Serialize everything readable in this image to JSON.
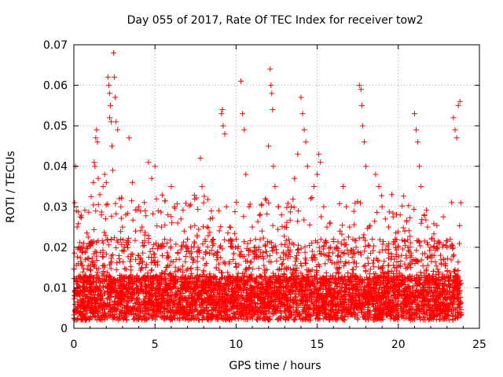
{
  "chart_data": {
    "type": "scatter",
    "title": "Day 055 of 2017, Rate Of TEC Index for receiver tow2",
    "xlabel": "GPS time / hours",
    "ylabel": "ROTI / TECUs",
    "xlim": [
      0,
      25
    ],
    "ylim": [
      0,
      0.07
    ],
    "xticks": [
      0,
      5,
      10,
      15,
      20,
      25
    ],
    "xtick_labels": [
      "0",
      "5",
      "10",
      "15",
      "20",
      "25"
    ],
    "yticks": [
      0,
      0.01,
      0.02,
      0.03,
      0.04,
      0.05,
      0.06,
      0.07
    ],
    "ytick_labels": [
      "0",
      "0.01",
      "0.02",
      "0.03",
      "0.04",
      "0.05",
      "0.06",
      "0.07"
    ],
    "grid": true,
    "marker": "+",
    "color": "#ff0000",
    "series": [
      {
        "name": "ROTI",
        "points": [
          [
            0.05,
            0.031
          ],
          [
            0.1,
            0.04
          ],
          [
            0.15,
            0.029
          ],
          [
            0.2,
            0.025
          ],
          [
            0.3,
            0.02
          ],
          [
            0.5,
            0.019
          ],
          [
            0.7,
            0.017
          ],
          [
            1.0,
            0.021
          ],
          [
            1.2,
            0.036
          ],
          [
            1.25,
            0.041
          ],
          [
            1.3,
            0.04
          ],
          [
            1.35,
            0.047
          ],
          [
            1.4,
            0.049
          ],
          [
            1.45,
            0.046
          ],
          [
            1.5,
            0.037
          ],
          [
            1.6,
            0.033
          ],
          [
            1.7,
            0.028
          ],
          [
            1.8,
            0.035
          ],
          [
            1.9,
            0.038
          ],
          [
            2.0,
            0.036
          ],
          [
            2.1,
            0.062
          ],
          [
            2.15,
            0.06
          ],
          [
            2.2,
            0.058
          ],
          [
            2.25,
            0.055
          ],
          [
            2.2,
            0.052
          ],
          [
            2.3,
            0.051
          ],
          [
            2.35,
            0.045
          ],
          [
            2.4,
            0.039
          ],
          [
            2.45,
            0.068
          ],
          [
            2.5,
            0.062
          ],
          [
            2.55,
            0.057
          ],
          [
            2.6,
            0.051
          ],
          [
            2.7,
            0.049
          ],
          [
            2.8,
            0.032
          ],
          [
            2.9,
            0.03
          ],
          [
            3.0,
            0.025
          ],
          [
            3.2,
            0.028
          ],
          [
            3.4,
            0.047
          ],
          [
            3.6,
            0.036
          ],
          [
            3.8,
            0.024
          ],
          [
            4.0,
            0.03
          ],
          [
            4.2,
            0.025
          ],
          [
            4.4,
            0.029
          ],
          [
            4.6,
            0.041
          ],
          [
            4.8,
            0.037
          ],
          [
            5.0,
            0.04
          ],
          [
            5.2,
            0.029
          ],
          [
            5.4,
            0.025
          ],
          [
            5.6,
            0.022
          ],
          [
            5.8,
            0.028
          ],
          [
            6.0,
            0.035
          ],
          [
            6.2,
            0.03
          ],
          [
            6.4,
            0.026
          ],
          [
            6.6,
            0.027
          ],
          [
            6.8,
            0.024
          ],
          [
            7.0,
            0.022
          ],
          [
            7.2,
            0.025
          ],
          [
            7.4,
            0.02
          ],
          [
            7.6,
            0.023
          ],
          [
            7.8,
            0.042
          ],
          [
            7.9,
            0.035
          ],
          [
            8.0,
            0.031
          ],
          [
            8.2,
            0.025
          ],
          [
            8.4,
            0.027
          ],
          [
            8.6,
            0.022
          ],
          [
            8.8,
            0.018
          ],
          [
            9.0,
            0.02
          ],
          [
            9.1,
            0.053
          ],
          [
            9.15,
            0.054
          ],
          [
            9.2,
            0.05
          ],
          [
            9.3,
            0.048
          ],
          [
            9.4,
            0.03
          ],
          [
            9.6,
            0.025
          ],
          [
            9.8,
            0.02
          ],
          [
            10.0,
            0.022
          ],
          [
            10.3,
            0.061
          ],
          [
            10.4,
            0.053
          ],
          [
            10.5,
            0.049
          ],
          [
            10.6,
            0.038
          ],
          [
            10.8,
            0.03
          ],
          [
            11.0,
            0.025
          ],
          [
            11.2,
            0.022
          ],
          [
            11.4,
            0.02
          ],
          [
            11.6,
            0.024
          ],
          [
            11.8,
            0.032
          ],
          [
            12.0,
            0.045
          ],
          [
            12.1,
            0.064
          ],
          [
            12.15,
            0.06
          ],
          [
            12.2,
            0.058
          ],
          [
            12.25,
            0.054
          ],
          [
            12.3,
            0.04
          ],
          [
            12.4,
            0.035
          ],
          [
            12.6,
            0.03
          ],
          [
            12.8,
            0.028
          ],
          [
            13.0,
            0.025
          ],
          [
            13.2,
            0.02
          ],
          [
            13.4,
            0.03
          ],
          [
            13.6,
            0.037
          ],
          [
            13.8,
            0.043
          ],
          [
            14.0,
            0.057
          ],
          [
            14.1,
            0.053
          ],
          [
            14.2,
            0.049
          ],
          [
            14.3,
            0.046
          ],
          [
            14.4,
            0.04
          ],
          [
            14.6,
            0.032
          ],
          [
            14.8,
            0.035
          ],
          [
            15.0,
            0.038
          ],
          [
            15.1,
            0.043
          ],
          [
            15.2,
            0.041
          ],
          [
            15.4,
            0.03
          ],
          [
            15.6,
            0.025
          ],
          [
            15.8,
            0.026
          ],
          [
            16.0,
            0.022
          ],
          [
            16.2,
            0.02
          ],
          [
            16.4,
            0.024
          ],
          [
            16.6,
            0.035
          ],
          [
            16.8,
            0.03
          ],
          [
            17.0,
            0.025
          ],
          [
            17.2,
            0.022
          ],
          [
            17.4,
            0.02
          ],
          [
            17.6,
            0.06
          ],
          [
            17.7,
            0.059
          ],
          [
            17.75,
            0.055
          ],
          [
            17.8,
            0.05
          ],
          [
            17.9,
            0.046
          ],
          [
            18.0,
            0.04
          ],
          [
            18.2,
            0.025
          ],
          [
            18.4,
            0.022
          ],
          [
            18.6,
            0.038
          ],
          [
            18.8,
            0.035
          ],
          [
            19.0,
            0.03
          ],
          [
            19.2,
            0.027
          ],
          [
            19.4,
            0.025
          ],
          [
            19.6,
            0.033
          ],
          [
            19.8,
            0.022
          ],
          [
            20.0,
            0.02
          ],
          [
            20.2,
            0.018
          ],
          [
            20.4,
            0.024
          ],
          [
            20.6,
            0.02
          ],
          [
            20.8,
            0.018
          ],
          [
            21.0,
            0.053
          ],
          [
            21.1,
            0.049
          ],
          [
            21.2,
            0.046
          ],
          [
            21.3,
            0.04
          ],
          [
            21.4,
            0.035
          ],
          [
            21.6,
            0.028
          ],
          [
            21.8,
            0.025
          ],
          [
            22.0,
            0.02
          ],
          [
            22.2,
            0.018
          ],
          [
            22.4,
            0.02
          ],
          [
            22.6,
            0.018
          ],
          [
            22.8,
            0.017
          ],
          [
            23.0,
            0.02
          ],
          [
            23.2,
            0.022
          ],
          [
            23.4,
            0.052
          ],
          [
            23.5,
            0.049
          ],
          [
            23.6,
            0.047
          ],
          [
            23.7,
            0.055
          ],
          [
            23.8,
            0.056
          ],
          [
            23.85,
            0.031
          ]
        ]
      }
    ]
  }
}
